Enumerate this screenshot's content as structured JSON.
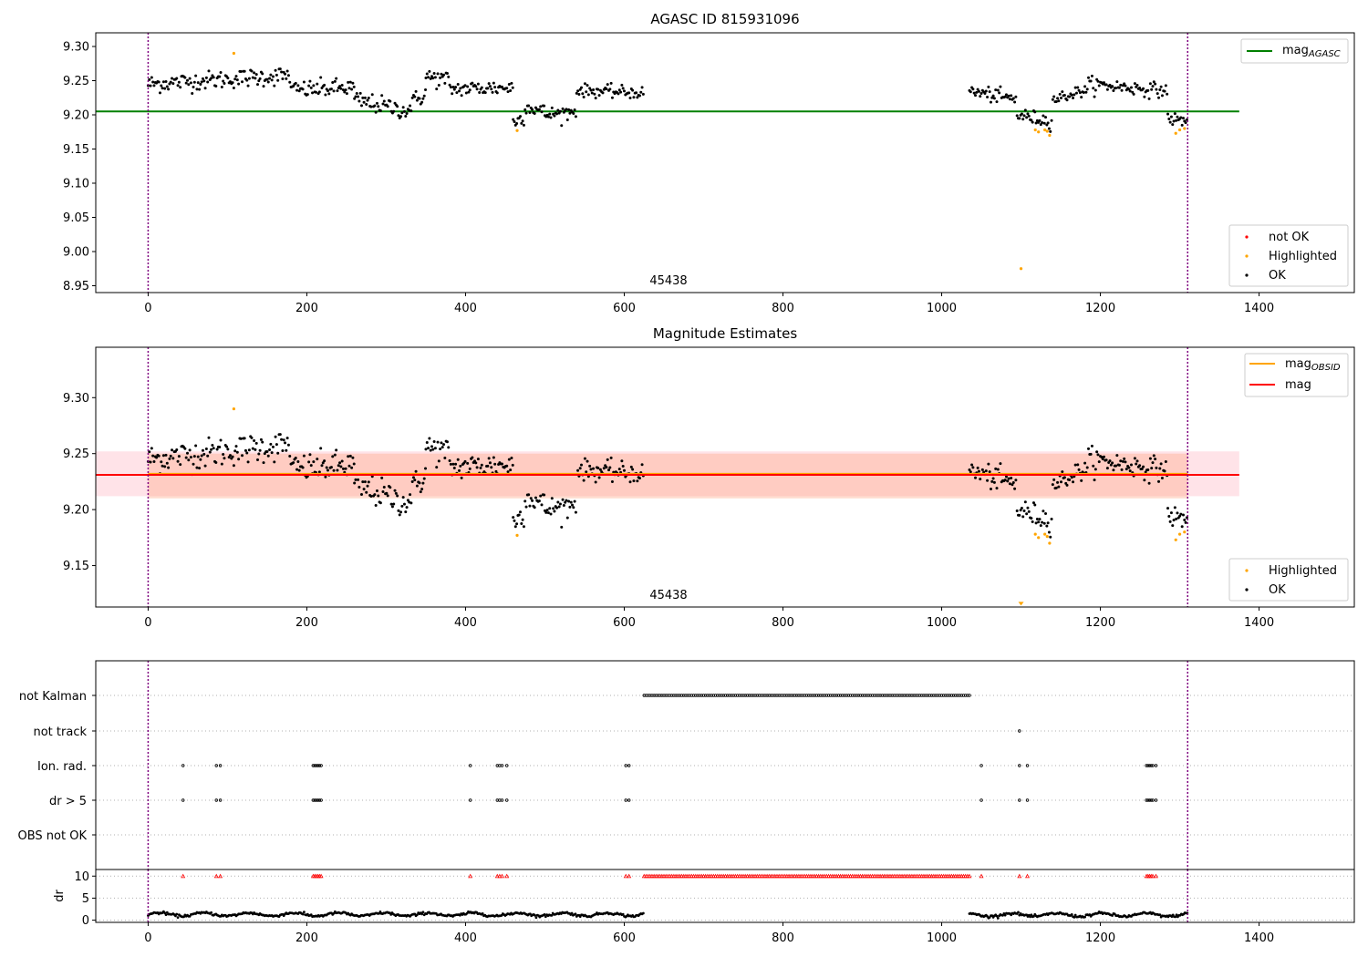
{
  "chart_data": [
    {
      "type": "scatter",
      "title": "AGASC ID 815931096",
      "xlabel": "",
      "ylabel": "",
      "xlim": [
        -66,
        1520
      ],
      "ylim": [
        8.94,
        9.32
      ],
      "xticks": [
        0,
        200,
        400,
        600,
        800,
        1000,
        1200,
        1400
      ],
      "yticks": [
        "8.95",
        "9.00",
        "9.05",
        "9.10",
        "9.15",
        "9.20",
        "9.25",
        "9.30"
      ],
      "obsid_label": "45438",
      "obsid_label_x": 650,
      "obs_boundaries": [
        0,
        1310
      ],
      "mag_agasc": 9.205,
      "mag_agasc_xrange": [
        -66,
        1375
      ],
      "legend_top": [
        {
          "label": "mag",
          "sub": "AGASC",
          "color": "#008000"
        }
      ],
      "legend_bottom": [
        {
          "label": "not OK",
          "color": "#ff0000"
        },
        {
          "label": "Highlighted",
          "color": "#ffa500"
        },
        {
          "label": "OK",
          "color": "#000000"
        }
      ],
      "segments": [
        {
          "x0": 0,
          "x1": 180,
          "y0": 9.245,
          "y1": 9.258,
          "noise": 0.009
        },
        {
          "x0": 180,
          "x1": 260,
          "y0": 9.236,
          "y1": 9.24,
          "noise": 0.009
        },
        {
          "x0": 260,
          "x1": 330,
          "y0": 9.222,
          "y1": 9.205,
          "noise": 0.009
        },
        {
          "x0": 330,
          "x1": 350,
          "y0": 9.215,
          "y1": 9.232,
          "noise": 0.009
        },
        {
          "x0": 350,
          "x1": 380,
          "y0": 9.256,
          "y1": 9.25,
          "noise": 0.009
        },
        {
          "x0": 380,
          "x1": 460,
          "y0": 9.238,
          "y1": 9.24,
          "noise": 0.008
        },
        {
          "x0": 460,
          "x1": 475,
          "y0": 9.19,
          "y1": 9.197,
          "noise": 0.007
        },
        {
          "x0": 475,
          "x1": 500,
          "y0": 9.212,
          "y1": 9.205,
          "noise": 0.007
        },
        {
          "x0": 500,
          "x1": 540,
          "y0": 9.2,
          "y1": 9.205,
          "noise": 0.007
        },
        {
          "x0": 540,
          "x1": 625,
          "y0": 9.236,
          "y1": 9.232,
          "noise": 0.006
        },
        {
          "x0": 1035,
          "x1": 1095,
          "y0": 9.235,
          "y1": 9.222,
          "noise": 0.007
        },
        {
          "x0": 1095,
          "x1": 1140,
          "y0": 9.2,
          "y1": 9.19,
          "noise": 0.007
        },
        {
          "x0": 1140,
          "x1": 1185,
          "y0": 9.222,
          "y1": 9.238,
          "noise": 0.006
        },
        {
          "x0": 1185,
          "x1": 1285,
          "y0": 9.245,
          "y1": 9.235,
          "noise": 0.007
        },
        {
          "x0": 1285,
          "x1": 1310,
          "y0": 9.195,
          "y1": 9.19,
          "noise": 0.006
        }
      ],
      "highlighted_points": [
        [
          108,
          9.29
        ],
        [
          465,
          9.177
        ],
        [
          1100,
          8.975
        ],
        [
          1118,
          9.178
        ],
        [
          1122,
          9.175
        ],
        [
          1130,
          9.178
        ],
        [
          1133,
          9.176
        ],
        [
          1136,
          9.17
        ],
        [
          1295,
          9.173
        ],
        [
          1300,
          9.178
        ],
        [
          1306,
          9.18
        ]
      ]
    },
    {
      "type": "scatter",
      "title": "Magnitude Estimates",
      "xlabel": "",
      "ylabel": "",
      "xlim": [
        -66,
        1520
      ],
      "ylim": [
        9.113,
        9.345
      ],
      "xticks": [
        0,
        200,
        400,
        600,
        800,
        1000,
        1200,
        1400
      ],
      "yticks": [
        "9.15",
        "9.20",
        "9.25",
        "9.30"
      ],
      "obsid_label": "45438",
      "obsid_label_x": 650,
      "obs_boundaries": [
        0,
        1310
      ],
      "mag": 9.231,
      "mag_obsid": 9.232,
      "mag_band": [
        9.212,
        9.252
      ],
      "mag_band_xrange": [
        -66,
        1375
      ],
      "obsid_band": [
        9.21,
        9.25
      ],
      "obsid_band_xrange": [
        0,
        1310
      ],
      "legend_top": [
        {
          "label": "mag",
          "sub": "OBSID",
          "color": "#ffa500"
        },
        {
          "label": "mag",
          "sub": "",
          "color": "#ff0000"
        }
      ],
      "legend_bottom": [
        {
          "label": "Highlighted",
          "color": "#ffa500"
        },
        {
          "label": "OK",
          "color": "#000000"
        }
      ]
    },
    {
      "type": "scatter",
      "title": "",
      "xlabel": "",
      "xlim": [
        -66,
        1520
      ],
      "xticks": [
        0,
        200,
        400,
        600,
        800,
        1000,
        1200,
        1400
      ],
      "obs_boundaries": [
        0,
        1310
      ],
      "flags": [
        "not Kalman",
        "not track",
        "Ion. rad.",
        "dr > 5",
        "OBS not OK"
      ],
      "not_kalman_range": [
        625,
        1035
      ],
      "not_track_x": [
        1098
      ],
      "ion_rad_x": [
        44,
        86,
        91,
        208,
        210,
        212,
        214,
        216,
        218,
        406,
        440,
        443,
        446,
        452,
        602,
        606,
        1050,
        1098,
        1108,
        1258,
        1260,
        1262,
        1264,
        1266,
        1270
      ],
      "dr_gt5_x": [
        44,
        86,
        91,
        208,
        210,
        212,
        214,
        216,
        218,
        406,
        440,
        443,
        446,
        452,
        602,
        606,
        1050,
        1098,
        1108,
        1258,
        1260,
        1262,
        1264,
        1266,
        1270
      ],
      "dr_ylabel": "dr",
      "dr_ylim": [
        -0.5,
        11.5
      ],
      "dr_yticks": [
        "0",
        "5",
        "10"
      ],
      "dr_segments": [
        {
          "x0": 0,
          "x1": 625,
          "mean": 1.3,
          "amp": 0.6
        },
        {
          "x0": 1035,
          "x1": 1310,
          "mean": 1.2,
          "amp": 0.6
        }
      ]
    }
  ]
}
